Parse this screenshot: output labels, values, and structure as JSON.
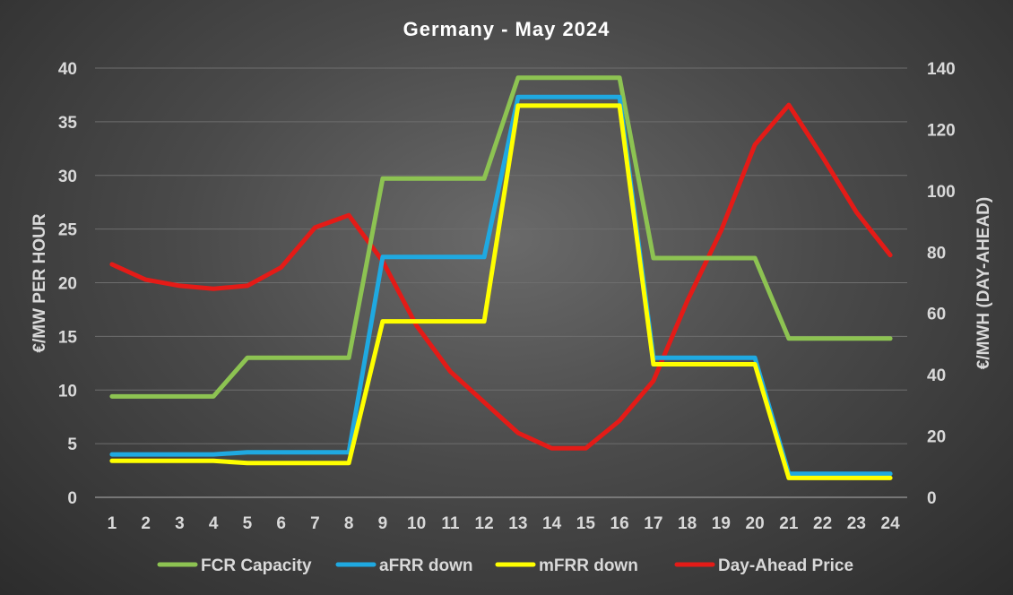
{
  "chart_data": {
    "type": "line",
    "title": "Germany - May 2024",
    "ylabel": "€/MW PER HOUR",
    "y2label": "€/MWH (DAY-AHEAD)",
    "ylim": [
      0,
      40
    ],
    "y2lim": [
      0,
      140
    ],
    "yticks": [
      "0",
      "5",
      "10",
      "15",
      "20",
      "25",
      "30",
      "35",
      "40"
    ],
    "y2ticks": [
      "0",
      "20",
      "40",
      "60",
      "80",
      "100",
      "120",
      "140"
    ],
    "categories": [
      "1",
      "2",
      "3",
      "4",
      "5",
      "6",
      "7",
      "8",
      "9",
      "10",
      "11",
      "12",
      "13",
      "14",
      "15",
      "16",
      "17",
      "18",
      "19",
      "20",
      "21",
      "22",
      "23",
      "24"
    ],
    "grid": true,
    "legend_position": "bottom",
    "series": [
      {
        "name": "FCR Capacity",
        "axis": "left",
        "color": "#8dc352",
        "values": [
          9.4,
          9.4,
          9.4,
          9.4,
          13.0,
          13.0,
          13.0,
          13.0,
          29.7,
          29.7,
          29.7,
          29.7,
          39.1,
          39.1,
          39.1,
          39.1,
          22.3,
          22.3,
          22.3,
          22.3,
          14.8,
          14.8,
          14.8,
          14.8
        ]
      },
      {
        "name": "aFRR down",
        "axis": "left",
        "color": "#1fa9e1",
        "values": [
          4.0,
          4.0,
          4.0,
          4.0,
          4.2,
          4.2,
          4.2,
          4.2,
          22.4,
          22.4,
          22.4,
          22.4,
          37.3,
          37.3,
          37.3,
          37.3,
          13.0,
          13.0,
          13.0,
          13.0,
          2.2,
          2.2,
          2.2,
          2.2
        ]
      },
      {
        "name": "mFRR down",
        "axis": "left",
        "color": "#ffff00",
        "values": [
          3.4,
          3.4,
          3.4,
          3.4,
          3.2,
          3.2,
          3.2,
          3.2,
          16.4,
          16.4,
          16.4,
          16.4,
          36.5,
          36.5,
          36.5,
          36.5,
          12.4,
          12.4,
          12.4,
          12.4,
          1.8,
          1.8,
          1.8,
          1.8
        ]
      },
      {
        "name": "Day-Ahead Price",
        "axis": "right",
        "color": "#e41b17",
        "values": [
          76,
          71,
          69,
          68,
          69,
          75,
          88,
          92,
          77,
          56,
          41,
          31,
          21,
          16,
          16,
          25,
          38,
          64,
          87,
          115,
          128,
          111,
          93,
          79
        ]
      }
    ]
  }
}
